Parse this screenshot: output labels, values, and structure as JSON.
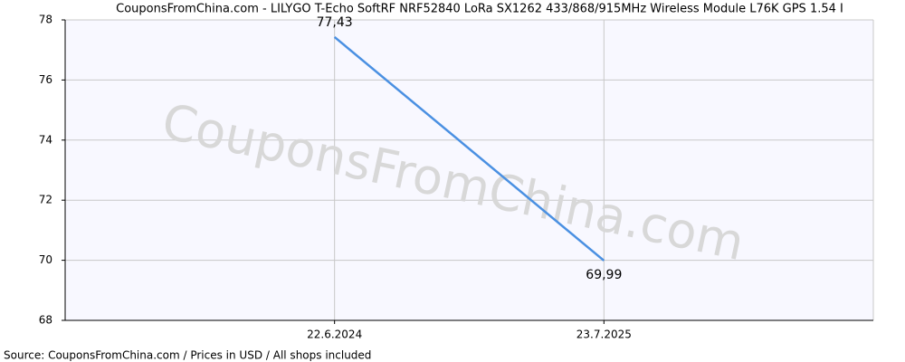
{
  "chart_data": {
    "type": "line",
    "title": "CouponsFromChina.com - LILYGO T-Echo SoftRF NRF52840 LoRa SX1262 433/868/915MHz Wireless Module L76K GPS 1.54 I",
    "watermark": "CouponsFromChina.com",
    "footer": "Source: CouponsFromChina.com / Prices in USD / All shops included",
    "categories": [
      "22.6.2024",
      "23.7.2025"
    ],
    "series": [
      {
        "color": "#4a90e2",
        "values": [
          77.43,
          69.99
        ],
        "value_labels": [
          "77,43",
          "69,99"
        ]
      }
    ],
    "ylim": [
      68,
      78
    ],
    "yticks": [
      68,
      70,
      72,
      74,
      76,
      78
    ],
    "grid": true
  }
}
